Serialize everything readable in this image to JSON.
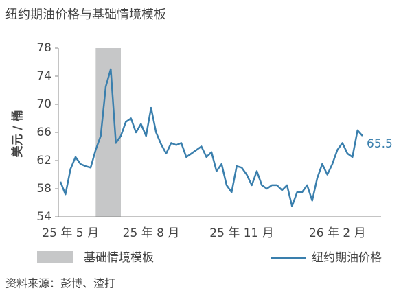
{
  "chart_data": {
    "type": "line",
    "title": "纽约期油价格与基础情境模板",
    "y_label": "美元 / 桶",
    "source": "资料来源：彭博、渣打",
    "categories": [
      null,
      null,
      "25 年 5 月",
      null,
      null,
      null,
      null,
      null,
      null,
      null,
      null,
      null,
      null,
      null,
      null,
      null,
      null,
      null,
      "25 年 8 月",
      null,
      null,
      null,
      null,
      null,
      null,
      null,
      null,
      null,
      null,
      null,
      null,
      null,
      null,
      null,
      null,
      null,
      "25 年 11 月",
      null,
      null,
      null,
      null,
      null,
      null,
      null,
      null,
      null,
      null,
      null,
      null,
      null,
      null,
      null,
      null,
      null,
      null,
      "26 年 2 月",
      null,
      null,
      null,
      null,
      null
    ],
    "series": [
      {
        "name": "纽约期油价格",
        "color": "#3a7fad",
        "values": [
          59,
          57.2,
          60.8,
          62.5,
          61.5,
          61.2,
          61,
          63.5,
          65.5,
          72.5,
          75,
          64.5,
          65.5,
          67.5,
          68,
          66,
          67.2,
          65.5,
          69.5,
          66,
          64.3,
          63,
          64.5,
          64.2,
          64.5,
          62.5,
          63,
          63.5,
          64,
          62.5,
          63.2,
          60.5,
          61.5,
          58.5,
          57.5,
          61.2,
          61,
          60,
          58.5,
          60.5,
          58.5,
          58,
          58.5,
          58.5,
          57.8,
          58.5,
          55.5,
          57.5,
          57.5,
          58.5,
          56.3,
          59.5,
          61.5,
          60,
          61.5,
          63.5,
          64.5,
          63,
          62.5,
          66.3,
          65.5
        ]
      }
    ],
    "highlight": {
      "name": "基础情境模板",
      "from": 7,
      "to": 12,
      "color": "#c6c7c8"
    },
    "ylim": [
      54,
      78
    ],
    "yticks": [
      54,
      58,
      62,
      66,
      70,
      74,
      78
    ]
  }
}
